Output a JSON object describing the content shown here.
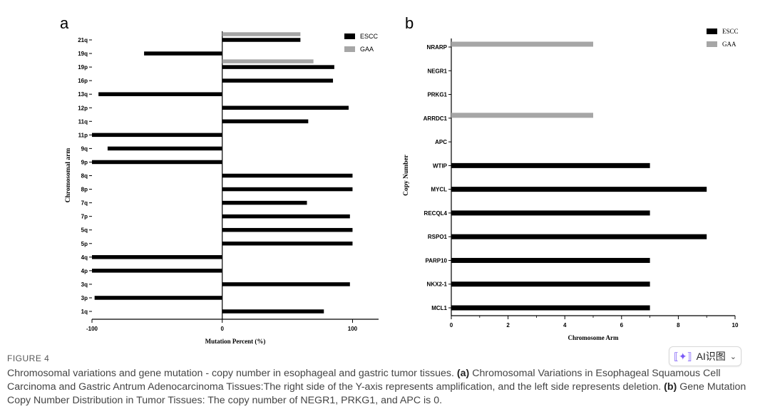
{
  "figure": {
    "label": "FIGURE 4",
    "caption_main": "Chromosomal variations and gene mutation - copy number in esophageal and gastric tumor tissues.",
    "caption_a_label": "(a)",
    "caption_a_text": "Chromosomal Variations in Esophageal Squamous Cell Carcinoma and Gastric Antrum Adenocarcinoma Tissues:The right side of the Y-axis represents amplification, and the left side represents deletion.",
    "caption_b_label": "(b)",
    "caption_b_text": "Gene Mutation Copy Number Distribution in Tumor Tissues: The copy number of NEGR1, PRKG1, and APC is 0."
  },
  "ai_button": {
    "label": "AI识图",
    "icon": "ai-scan-icon",
    "chevron": "chevron-down-icon"
  },
  "colors": {
    "escc": "#000000",
    "gaa": "#a6a6a6"
  },
  "chart_data": [
    {
      "panel": "a",
      "type": "bar",
      "orientation": "horizontal",
      "title": "",
      "xlabel": "Mutation Percent (%)",
      "ylabel": "Chromosomal arm",
      "xlim": [
        -100,
        120
      ],
      "xticks": [
        -100,
        0,
        100
      ],
      "categories": [
        "1q",
        "3p",
        "3q",
        "4p",
        "4q",
        "5p",
        "5q",
        "7p",
        "7q",
        "8p",
        "8q",
        "9p",
        "9q",
        "11p",
        "11q",
        "12p",
        "13q",
        "16p",
        "19p",
        "19q",
        "21q"
      ],
      "series": [
        {
          "name": "ESCC",
          "values": [
            78,
            -98,
            98,
            -100,
            -100,
            100,
            100,
            98,
            65,
            100,
            100,
            -100,
            -88,
            -100,
            66,
            97,
            -95,
            85,
            86,
            -60,
            60
          ]
        },
        {
          "name": "GAA",
          "values": [
            null,
            null,
            null,
            null,
            null,
            null,
            null,
            null,
            null,
            null,
            null,
            null,
            null,
            null,
            null,
            null,
            null,
            null,
            70,
            null,
            60
          ]
        }
      ],
      "legend": [
        "ESCC",
        "GAA"
      ],
      "legend_position": "top-right"
    },
    {
      "panel": "b",
      "type": "bar",
      "orientation": "horizontal",
      "title": "",
      "xlabel": "Chromosome Arm",
      "ylabel": "Copy Number",
      "xlim": [
        0,
        10
      ],
      "xticks": [
        0,
        2,
        4,
        6,
        8,
        10
      ],
      "categories": [
        "MCL1",
        "NKX2-1",
        "PARP10",
        "RSPO1",
        "RECQL4",
        "MYCL",
        "WTIP",
        "APC",
        "ARRDC1",
        "PRKG1",
        "NEGR1",
        "NRARP"
      ],
      "series": [
        {
          "name": "ESCC",
          "values": [
            7,
            7,
            7,
            9,
            7,
            9,
            7,
            0,
            0,
            0,
            0,
            0
          ]
        },
        {
          "name": "GAA",
          "values": [
            0,
            0,
            0,
            0,
            0,
            0,
            0,
            0,
            5,
            0,
            0,
            5
          ]
        }
      ],
      "legend": [
        "ESCC",
        "GAA"
      ],
      "legend_position": "top-right"
    }
  ]
}
